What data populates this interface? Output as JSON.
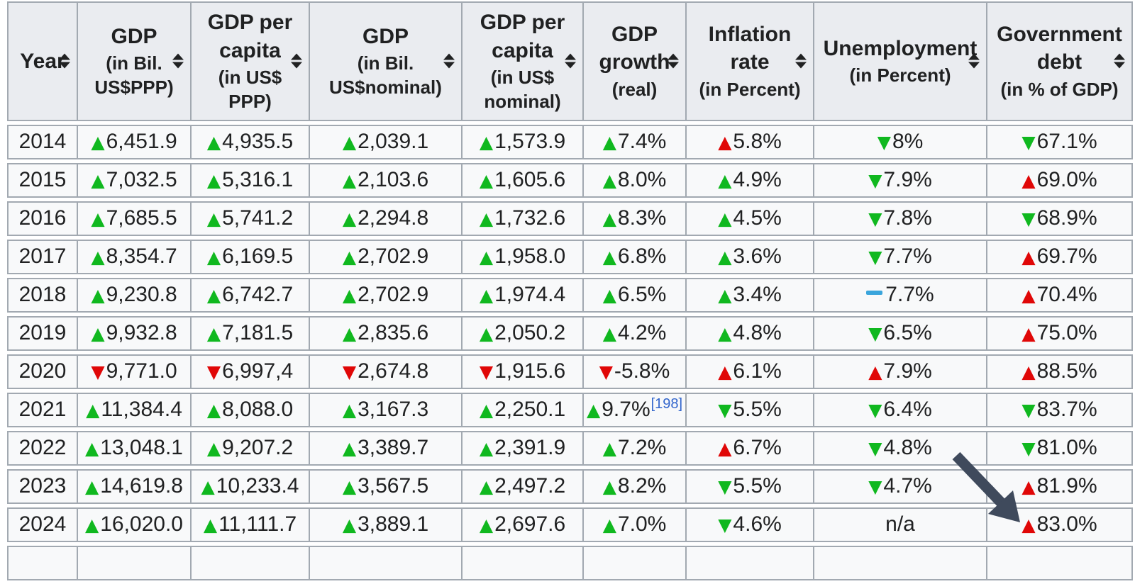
{
  "table": {
    "name": "economic-indicators-by-year",
    "columns": [
      {
        "key": "year",
        "title": "Year",
        "sub": ""
      },
      {
        "key": "gdp_ppp",
        "title": "GDP",
        "sub": "(in Bil. US$PPP)"
      },
      {
        "key": "gdp_per_capita_ppp",
        "title": "GDP per capita",
        "sub": "(in US$ PPP)"
      },
      {
        "key": "gdp_nominal",
        "title": "GDP",
        "sub": "(in Bil. US$nominal)"
      },
      {
        "key": "gdp_per_capita_nominal",
        "title": "GDP per capita",
        "sub": "(in US$ nominal)"
      },
      {
        "key": "gdp_growth",
        "title": "GDP growth",
        "sub": "(real)"
      },
      {
        "key": "inflation_rate",
        "title": "Inflation rate",
        "sub": "(in Percent)"
      },
      {
        "key": "unemployment",
        "title": "Unemployment",
        "sub": "(in Percent)"
      },
      {
        "key": "government_debt",
        "title": "Government debt",
        "sub": "(in % of GDP)"
      }
    ],
    "rows": [
      {
        "year": "2014",
        "cells": [
          {
            "i": "up-green",
            "t": "6,451.9"
          },
          {
            "i": "up-green",
            "t": "4,935.5"
          },
          {
            "i": "up-green",
            "t": "2,039.1"
          },
          {
            "i": "up-green",
            "t": "1,573.9"
          },
          {
            "i": "up-green",
            "t": "7.4%"
          },
          {
            "i": "up-red",
            "t": "5.8%"
          },
          {
            "i": "down-green",
            "t": "8%"
          },
          {
            "i": "down-green",
            "t": "67.1%"
          }
        ]
      },
      {
        "year": "2015",
        "cells": [
          {
            "i": "up-green",
            "t": "7,032.5"
          },
          {
            "i": "up-green",
            "t": "5,316.1"
          },
          {
            "i": "up-green",
            "t": "2,103.6"
          },
          {
            "i": "up-green",
            "t": "1,605.6"
          },
          {
            "i": "up-green",
            "t": "8.0%"
          },
          {
            "i": "up-green",
            "t": "4.9%"
          },
          {
            "i": "down-green",
            "t": "7.9%"
          },
          {
            "i": "up-red",
            "t": "69.0%"
          }
        ]
      },
      {
        "year": "2016",
        "cells": [
          {
            "i": "up-green",
            "t": "7,685.5"
          },
          {
            "i": "up-green",
            "t": "5,741.2"
          },
          {
            "i": "up-green",
            "t": "2,294.8"
          },
          {
            "i": "up-green",
            "t": "1,732.6"
          },
          {
            "i": "up-green",
            "t": "8.3%"
          },
          {
            "i": "up-green",
            "t": "4.5%"
          },
          {
            "i": "down-green",
            "t": "7.8%"
          },
          {
            "i": "down-green",
            "t": "68.9%"
          }
        ]
      },
      {
        "year": "2017",
        "cells": [
          {
            "i": "up-green",
            "t": "8,354.7"
          },
          {
            "i": "up-green",
            "t": "6,169.5"
          },
          {
            "i": "up-green",
            "t": "2,702.9"
          },
          {
            "i": "up-green",
            "t": "1,958.0"
          },
          {
            "i": "up-green",
            "t": "6.8%"
          },
          {
            "i": "up-green",
            "t": "3.6%"
          },
          {
            "i": "down-green",
            "t": "7.7%"
          },
          {
            "i": "up-red",
            "t": "69.7%"
          }
        ]
      },
      {
        "year": "2018",
        "cells": [
          {
            "i": "up-green",
            "t": "9,230.8"
          },
          {
            "i": "up-green",
            "t": "6,742.7"
          },
          {
            "i": "up-green",
            "t": "2,702.9"
          },
          {
            "i": "up-green",
            "t": "1,974.4"
          },
          {
            "i": "up-green",
            "t": "6.5%"
          },
          {
            "i": "up-green",
            "t": "3.4%"
          },
          {
            "i": "steady",
            "t": "7.7%"
          },
          {
            "i": "up-red",
            "t": "70.4%"
          }
        ]
      },
      {
        "year": "2019",
        "cells": [
          {
            "i": "up-green",
            "t": "9,932.8"
          },
          {
            "i": "up-green",
            "t": "7,181.5"
          },
          {
            "i": "up-green",
            "t": "2,835.6"
          },
          {
            "i": "up-green",
            "t": "2,050.2"
          },
          {
            "i": "up-green",
            "t": "4.2%"
          },
          {
            "i": "up-green",
            "t": "4.8%"
          },
          {
            "i": "down-green",
            "t": "6.5%"
          },
          {
            "i": "up-red",
            "t": "75.0%"
          }
        ]
      },
      {
        "year": "2020",
        "cells": [
          {
            "i": "down-red",
            "t": "9,771.0"
          },
          {
            "i": "down-red",
            "t": "6,997,4"
          },
          {
            "i": "down-red",
            "t": "2,674.8"
          },
          {
            "i": "down-red",
            "t": "1,915.6"
          },
          {
            "i": "down-red",
            "t": "-5.8%"
          },
          {
            "i": "up-red",
            "t": "6.1%"
          },
          {
            "i": "up-red",
            "t": "7.9%"
          },
          {
            "i": "up-red",
            "t": "88.5%"
          }
        ]
      },
      {
        "year": "2021",
        "cells": [
          {
            "i": "up-green",
            "t": "11,384.4"
          },
          {
            "i": "up-green",
            "t": "8,088.0"
          },
          {
            "i": "up-green",
            "t": "3,167.3"
          },
          {
            "i": "up-green",
            "t": "2,250.1"
          },
          {
            "i": "up-green",
            "t": "9.7%",
            "cite": "[198]"
          },
          {
            "i": "down-green",
            "t": "5.5%"
          },
          {
            "i": "down-green",
            "t": "6.4%"
          },
          {
            "i": "down-green",
            "t": "83.7%"
          }
        ]
      },
      {
        "year": "2022",
        "cells": [
          {
            "i": "up-green",
            "t": "13,048.1"
          },
          {
            "i": "up-green",
            "t": "9,207.2"
          },
          {
            "i": "up-green",
            "t": "3,389.7"
          },
          {
            "i": "up-green",
            "t": "2,391.9"
          },
          {
            "i": "up-green",
            "t": "7.2%"
          },
          {
            "i": "up-red",
            "t": "6.7%"
          },
          {
            "i": "down-green",
            "t": "4.8%"
          },
          {
            "i": "down-green",
            "t": "81.0%"
          }
        ]
      },
      {
        "year": "2023",
        "cells": [
          {
            "i": "up-green",
            "t": "14,619.8"
          },
          {
            "i": "up-green",
            "t": "10,233.4"
          },
          {
            "i": "up-green",
            "t": "3,567.5"
          },
          {
            "i": "up-green",
            "t": "2,497.2"
          },
          {
            "i": "up-green",
            "t": "8.2%"
          },
          {
            "i": "down-green",
            "t": "5.5%"
          },
          {
            "i": "down-green",
            "t": "4.7%"
          },
          {
            "i": "up-red",
            "t": "81.9%"
          }
        ]
      },
      {
        "year": "2024",
        "cells": [
          {
            "i": "up-green",
            "t": "16,020.0"
          },
          {
            "i": "up-green",
            "t": "11,111.7"
          },
          {
            "i": "up-green",
            "t": "3,889.1"
          },
          {
            "i": "up-green",
            "t": "2,697.6"
          },
          {
            "i": "up-green",
            "t": "7.0%"
          },
          {
            "i": "down-green",
            "t": "4.6%"
          },
          {
            "i": "none",
            "t": "n/a"
          },
          {
            "i": "up-red",
            "t": "83.0%"
          }
        ]
      }
    ],
    "has_partial_next_row": true
  },
  "colors": {
    "increase_green": "#10b81f",
    "decrease_red": "#e00707",
    "steady_blue": "#3aa5dc",
    "link_blue": "#3366cc",
    "header_bg": "#eaecf0",
    "cell_bg": "#f8f9fa",
    "border": "#a2a9b1",
    "text": "#202122",
    "annotation_arrow": "#3f4a5c"
  },
  "annotations": {
    "arrow": {
      "points_at": "2024 government debt value 83.0%",
      "color": "#3f4a5c"
    }
  }
}
